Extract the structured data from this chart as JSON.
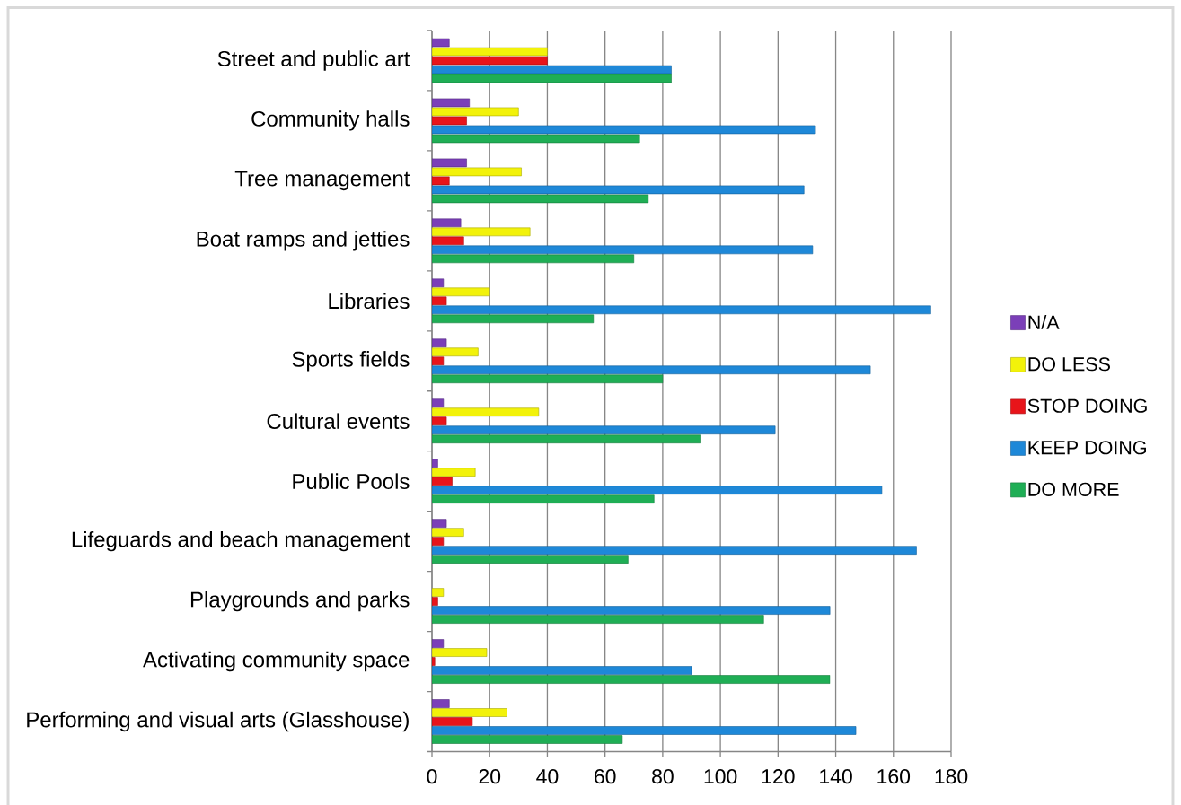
{
  "chart_data": {
    "type": "bar",
    "orientation": "horizontal",
    "categories": [
      "Street and public art",
      "Community halls",
      "Tree management",
      "Boat ramps and jetties",
      "Libraries",
      "Sports fields",
      "Cultural events",
      "Public Pools",
      "Lifeguards and beach management",
      "Playgrounds and parks",
      "Activating community space",
      "Performing and visual arts (Glasshouse)"
    ],
    "series": [
      {
        "name": "N/A",
        "color": "#7b3fb8",
        "values": [
          6,
          13,
          12,
          10,
          4,
          5,
          4,
          2,
          5,
          null,
          4,
          6
        ]
      },
      {
        "name": "DO LESS",
        "color": "#f2f20a",
        "values": [
          40,
          30,
          31,
          34,
          20,
          16,
          37,
          15,
          11,
          4,
          19,
          26
        ]
      },
      {
        "name": "STOP DOING",
        "color": "#e8141a",
        "values": [
          40,
          12,
          6,
          11,
          5,
          4,
          5,
          7,
          4,
          2,
          1,
          14
        ]
      },
      {
        "name": "KEEP DOING",
        "color": "#1e88d8",
        "values": [
          83,
          133,
          129,
          132,
          173,
          152,
          119,
          156,
          168,
          138,
          90,
          147
        ]
      },
      {
        "name": "DO MORE",
        "color": "#1fae55",
        "values": [
          83,
          72,
          75,
          70,
          56,
          80,
          93,
          77,
          68,
          115,
          138,
          66
        ]
      }
    ],
    "xlim": [
      0,
      180
    ],
    "xticks": [
      0,
      20,
      40,
      60,
      80,
      100,
      120,
      140,
      160,
      180
    ],
    "grid": "x",
    "legend": "right"
  }
}
